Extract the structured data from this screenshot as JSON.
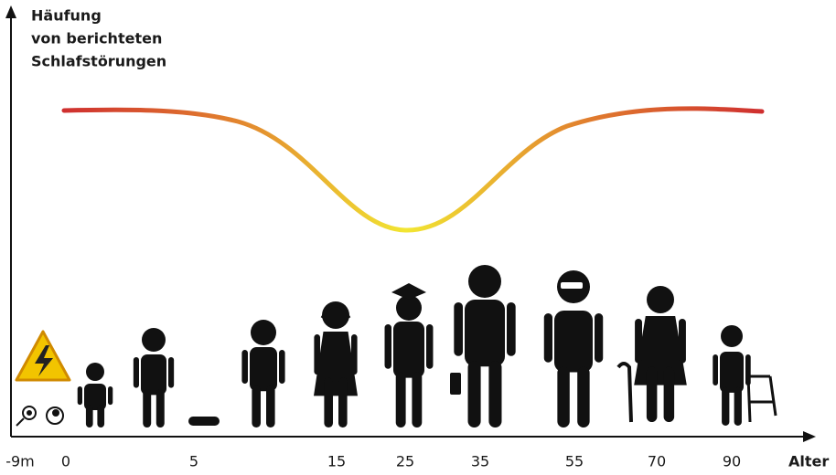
{
  "y_axis": {
    "label_lines": [
      "Häufung",
      "von berichteten",
      "Schlafstörungen"
    ]
  },
  "x_axis": {
    "label": "Alter",
    "ticks": [
      "-9m",
      "0",
      "5",
      "15",
      "25",
      "35",
      "55",
      "70",
      "90"
    ]
  }
}
